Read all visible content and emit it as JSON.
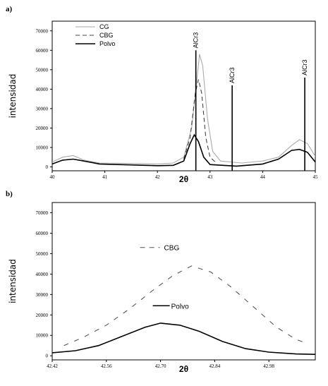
{
  "chart_data": [
    {
      "panel_label": "a)",
      "type": "line",
      "xlabel": "2θ",
      "ylabel": "intensidad",
      "xlim": [
        40,
        45
      ],
      "ylim": [
        -2000,
        75000
      ],
      "x_ticks": [
        "40",
        "41",
        "42",
        "43",
        "44",
        "45"
      ],
      "y_ticks": [
        "0",
        "10000",
        "20000",
        "30000",
        "40000",
        "50000",
        "60000",
        "70000"
      ],
      "legend": [
        "CG",
        "CBG",
        "Polvo"
      ],
      "legend_position": "top-left",
      "series": [
        {
          "name": "CG",
          "style": "solid",
          "color": "#aaaaaa",
          "points": [
            [
              40,
              2500
            ],
            [
              40.2,
              5000
            ],
            [
              40.4,
              5800
            ],
            [
              40.6,
              3500
            ],
            [
              40.9,
              2000
            ],
            [
              41.5,
              1800
            ],
            [
              42.0,
              1500
            ],
            [
              42.3,
              2000
            ],
            [
              42.5,
              5000
            ],
            [
              42.65,
              20000
            ],
            [
              42.75,
              45000
            ],
            [
              42.8,
              58000
            ],
            [
              42.86,
              52000
            ],
            [
              42.95,
              25000
            ],
            [
              43.05,
              8000
            ],
            [
              43.2,
              3000
            ],
            [
              43.6,
              2000
            ],
            [
              44.0,
              3000
            ],
            [
              44.3,
              5000
            ],
            [
              44.55,
              11000
            ],
            [
              44.7,
              14000
            ],
            [
              44.85,
              12000
            ],
            [
              45,
              5500
            ]
          ]
        },
        {
          "name": "CBG",
          "style": "dashed",
          "color": "#444444",
          "points": [
            [
              42.5,
              4000
            ],
            [
              42.62,
              15000
            ],
            [
              42.72,
              38000
            ],
            [
              42.78,
              45000
            ],
            [
              42.84,
              38000
            ],
            [
              42.92,
              15000
            ],
            [
              43.0,
              5000
            ],
            [
              43.1,
              2500
            ]
          ]
        },
        {
          "name": "Polvo",
          "style": "solid",
          "color": "#000000",
          "points": [
            [
              40,
              1500
            ],
            [
              40.2,
              3500
            ],
            [
              40.4,
              4000
            ],
            [
              40.6,
              3000
            ],
            [
              40.9,
              1500
            ],
            [
              41.5,
              1000
            ],
            [
              42.0,
              600
            ],
            [
              42.3,
              800
            ],
            [
              42.5,
              3000
            ],
            [
              42.62,
              12000
            ],
            [
              42.7,
              16500
            ],
            [
              42.78,
              13000
            ],
            [
              42.88,
              5000
            ],
            [
              43.0,
              1200
            ],
            [
              43.5,
              400
            ],
            [
              44.0,
              1500
            ],
            [
              44.3,
              4000
            ],
            [
              44.55,
              8500
            ],
            [
              44.7,
              9000
            ],
            [
              44.85,
              7500
            ],
            [
              45,
              2500
            ]
          ]
        }
      ],
      "reference_lines": [
        {
          "x": 42.73,
          "height": 60000,
          "label": "AlCr3"
        },
        {
          "x": 43.42,
          "height": 42000,
          "label": "AlCr3"
        },
        {
          "x": 44.8,
          "height": 46000,
          "label": "AlCr3"
        }
      ]
    },
    {
      "panel_label": "b)",
      "type": "line",
      "xlabel": "2θ",
      "ylabel": "intensidad",
      "xlim": [
        42.42,
        43.1
      ],
      "ylim": [
        -2000,
        75000
      ],
      "x_ticks": [
        {
          "value": 42.42,
          "label": "42.42"
        },
        {
          "value": 42.56,
          "label": "42.56"
        },
        {
          "value": 42.7,
          "label": "42.70"
        },
        {
          "value": 42.84,
          "label": "42.84"
        },
        {
          "value": 42.98,
          "label": "42.98"
        }
      ],
      "y_ticks": [
        "0",
        "10000",
        "20000",
        "30000",
        "40000",
        "50000",
        "60000",
        "70000"
      ],
      "series": [
        {
          "name": "CBG",
          "style": "dashed",
          "color": "#555555",
          "label_position": "top",
          "points": [
            [
              42.45,
              5000
            ],
            [
              42.5,
              9000
            ],
            [
              42.56,
              15000
            ],
            [
              42.62,
              23000
            ],
            [
              42.68,
              32000
            ],
            [
              42.73,
              39000
            ],
            [
              42.78,
              44000
            ],
            [
              42.83,
              41000
            ],
            [
              42.88,
              34000
            ],
            [
              42.94,
              24000
            ],
            [
              43.0,
              14000
            ],
            [
              43.05,
              8000
            ],
            [
              43.08,
              6000
            ]
          ]
        },
        {
          "name": "Polvo",
          "style": "solid",
          "color": "#000000",
          "label_position": "middle",
          "points": [
            [
              42.42,
              1500
            ],
            [
              42.48,
              2500
            ],
            [
              42.54,
              5000
            ],
            [
              42.6,
              9500
            ],
            [
              42.66,
              14000
            ],
            [
              42.7,
              16000
            ],
            [
              42.75,
              15000
            ],
            [
              42.8,
              12000
            ],
            [
              42.86,
              7000
            ],
            [
              42.92,
              3500
            ],
            [
              42.98,
              1800
            ],
            [
              43.05,
              900
            ],
            [
              43.1,
              700
            ]
          ]
        }
      ]
    }
  ]
}
